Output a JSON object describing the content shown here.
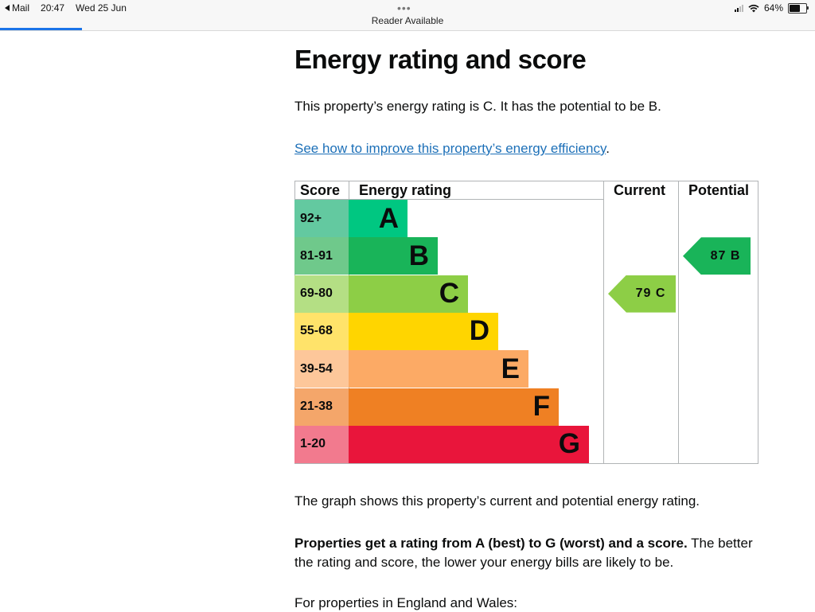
{
  "status_bar": {
    "back_label": "Mail",
    "time": "20:47",
    "date": "Wed 25 Jun",
    "dots": "•••",
    "reader": "Reader Available",
    "battery": "64%",
    "battery_level": 0.64
  },
  "page": {
    "title": "Energy rating and score",
    "intro": "This property’s energy rating is C. It has the potential to be B.",
    "link_text": "See how to improve this property’s energy efficiency",
    "link_suffix": ".",
    "graph_note": "The graph shows this property’s current and potential energy rating.",
    "ratings_bold": "Properties get a rating from A (best) to G (worst) and a score.",
    "ratings_rest": " The better the rating and score, the lower your energy bills are likely to be.",
    "england_wales": "For properties in England and Wales:"
  },
  "chart_data": {
    "type": "table",
    "headers": {
      "score": "Score",
      "rating": "Energy rating",
      "current": "Current",
      "potential": "Potential"
    },
    "bands": [
      {
        "letter": "A",
        "score": "92+",
        "color": "#00c781",
        "score_color": "#63c9a0"
      },
      {
        "letter": "B",
        "score": "81-91",
        "color": "#19b459",
        "score_color": "#6fc98b"
      },
      {
        "letter": "C",
        "score": "69-80",
        "color": "#8dce46",
        "score_color": "#b4df84"
      },
      {
        "letter": "D",
        "score": "55-68",
        "color": "#ffd500",
        "score_color": "#ffe36a"
      },
      {
        "letter": "E",
        "score": "39-54",
        "color": "#fcaa65",
        "score_color": "#fdc79a"
      },
      {
        "letter": "F",
        "score": "21-38",
        "color": "#ef8023",
        "score_color": "#f4a66a"
      },
      {
        "letter": "G",
        "score": "1-20",
        "color": "#e9153b",
        "score_color": "#f27a8e"
      }
    ],
    "current": {
      "score": 79,
      "band": "C",
      "label": "79  C",
      "color": "#8dce46"
    },
    "potential": {
      "score": 87,
      "band": "B",
      "label": "87  B",
      "color": "#19b459"
    }
  }
}
